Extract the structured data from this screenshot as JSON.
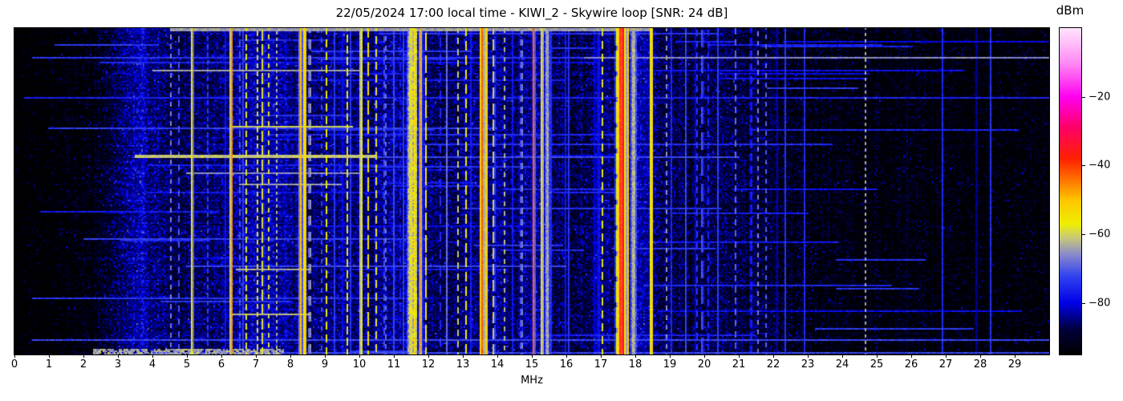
{
  "title": "22/05/2024 17:00 local time - KIWI_2 - Skywire loop [SNR: 24 dB]",
  "xaxis": {
    "label": "MHz",
    "min": 0,
    "max": 30,
    "ticks": [
      0,
      1,
      2,
      3,
      4,
      5,
      6,
      7,
      8,
      9,
      10,
      11,
      12,
      13,
      14,
      15,
      16,
      17,
      18,
      19,
      20,
      21,
      22,
      23,
      24,
      25,
      26,
      27,
      28,
      29
    ],
    "tick_labels": [
      "0",
      "1",
      "2",
      "3",
      "4",
      "5",
      "6",
      "7",
      "8",
      "9",
      "10",
      "11",
      "12",
      "13",
      "14",
      "15",
      "16",
      "17",
      "18",
      "19",
      "20",
      "21",
      "22",
      "23",
      "24",
      "25",
      "26",
      "27",
      "28",
      "29"
    ]
  },
  "colorbar": {
    "label": "dBm",
    "min": -95,
    "max": 0,
    "tick_values": [
      -20,
      -40,
      -60,
      -80
    ],
    "tick_labels": [
      "−20",
      "−40",
      "−60",
      "−80"
    ],
    "stops": [
      {
        "db": -95,
        "c": "#000000"
      },
      {
        "db": -88,
        "c": "#000038"
      },
      {
        "db": -80,
        "c": "#0000e8"
      },
      {
        "db": -72,
        "c": "#3344ee"
      },
      {
        "db": -66,
        "c": "#8888cc"
      },
      {
        "db": -61,
        "c": "#c8c87a"
      },
      {
        "db": -57,
        "c": "#eeee00"
      },
      {
        "db": -50,
        "c": "#ffc400"
      },
      {
        "db": -44,
        "c": "#ff7000"
      },
      {
        "db": -38,
        "c": "#ff2000"
      },
      {
        "db": -29,
        "c": "#ff0066"
      },
      {
        "db": -20,
        "c": "#ff00ee"
      },
      {
        "db": -10,
        "c": "#ff8cf4"
      },
      {
        "db": 0,
        "c": "#ffe4fc"
      }
    ]
  },
  "chart_data": {
    "type": "heatmap",
    "title": "22/05/2024 17:00 local time - KIWI_2 - Skywire loop [SNR: 24 dB]",
    "xlabel": "MHz",
    "x_range": [
      0,
      30
    ],
    "value_label": "dBm",
    "value_range": [
      -95,
      0
    ],
    "noise_floor_envelope": [
      [
        0,
        -96
      ],
      [
        1,
        -95
      ],
      [
        2,
        -92
      ],
      [
        2.8,
        -88
      ],
      [
        3.3,
        -83
      ],
      [
        3.65,
        -79
      ],
      [
        4.1,
        -83
      ],
      [
        4.6,
        -86
      ],
      [
        5.2,
        -85
      ],
      [
        6,
        -84
      ],
      [
        6.5,
        -82
      ],
      [
        7.5,
        -81
      ],
      [
        8.6,
        -84
      ],
      [
        9.3,
        -83
      ],
      [
        10,
        -83
      ],
      [
        10.8,
        -82
      ],
      [
        11.6,
        -82
      ],
      [
        12.3,
        -86
      ],
      [
        12.9,
        -84
      ],
      [
        13.6,
        -83
      ],
      [
        14.4,
        -84
      ],
      [
        15.1,
        -82
      ],
      [
        15.7,
        -85
      ],
      [
        16.3,
        -87
      ],
      [
        16.9,
        -84
      ],
      [
        17.4,
        -82
      ],
      [
        18.1,
        -81
      ],
      [
        18.7,
        -85
      ],
      [
        19.5,
        -87
      ],
      [
        20.3,
        -86
      ],
      [
        21.2,
        -86
      ],
      [
        22,
        -88
      ],
      [
        22.8,
        -90
      ],
      [
        23.5,
        -91
      ],
      [
        24.5,
        -92
      ],
      [
        26,
        -92
      ],
      [
        27.5,
        -93
      ],
      [
        29,
        -93
      ],
      [
        30,
        -93
      ]
    ],
    "carriers": [
      {
        "f": 4.53,
        "w": 0.02,
        "lvl": -66,
        "dash": 6,
        "duty": 0.5
      },
      {
        "f": 4.76,
        "w": 0.02,
        "lvl": -68,
        "dash": 8,
        "duty": 0.4
      },
      {
        "f": 5.15,
        "w": 0.04,
        "lvl": -55
      },
      {
        "f": 5.6,
        "w": 0.02,
        "lvl": -72,
        "dash": 5,
        "duty": 0.5
      },
      {
        "f": 6.29,
        "w": 0.035,
        "lvl": -44
      },
      {
        "f": 6.55,
        "w": 0.02,
        "lvl": -60,
        "dash": 7,
        "duty": 0.45
      },
      {
        "f": 6.73,
        "w": 0.03,
        "lvl": -57,
        "dash": 6,
        "duty": 0.55
      },
      {
        "f": 7.05,
        "w": 0.03,
        "lvl": -58,
        "dash": 5,
        "duty": 0.5
      },
      {
        "f": 7.2,
        "w": 0.03,
        "lvl": -55,
        "dash": 9,
        "duty": 0.7
      },
      {
        "f": 7.38,
        "w": 0.025,
        "lvl": -57,
        "dash": 6,
        "duty": 0.5
      },
      {
        "f": 7.6,
        "w": 0.02,
        "lvl": -62,
        "dash": 4,
        "duty": 0.5
      },
      {
        "f": 7.82,
        "w": 0.02,
        "lvl": -70
      },
      {
        "f": 8.3,
        "w": 0.045,
        "lvl": -50
      },
      {
        "f": 8.42,
        "w": 0.04,
        "lvl": -47
      },
      {
        "f": 8.56,
        "w": 0.03,
        "lvl": -56,
        "dash": 10,
        "duty": 0.6
      },
      {
        "f": 8.92,
        "w": 0.02,
        "lvl": -64,
        "dash": 6,
        "duty": 0.5
      },
      {
        "f": 9.05,
        "w": 0.03,
        "lvl": -57,
        "dash": 8,
        "duty": 0.6
      },
      {
        "f": 9.3,
        "w": 0.02,
        "lvl": -66,
        "dash": 5,
        "duty": 0.5
      },
      {
        "f": 9.65,
        "w": 0.03,
        "lvl": -58,
        "dash": 7,
        "duty": 0.6
      },
      {
        "f": 10.05,
        "w": 0.035,
        "lvl": -52
      },
      {
        "f": 10.25,
        "w": 0.03,
        "lvl": -54,
        "dash": 12,
        "duty": 0.7
      },
      {
        "f": 10.5,
        "w": 0.03,
        "lvl": -56,
        "dash": 8,
        "duty": 0.6
      },
      {
        "f": 10.75,
        "w": 0.025,
        "lvl": -60,
        "dash": 6,
        "duty": 0.5
      },
      {
        "f": 11.5,
        "w": 0.12,
        "lvl": -57,
        "jit": 5
      },
      {
        "f": 11.62,
        "w": 0.05,
        "lvl": -53,
        "jit": 4
      },
      {
        "f": 11.78,
        "w": 0.035,
        "lvl": -47
      },
      {
        "f": 11.92,
        "w": 0.03,
        "lvl": -55,
        "dash": 14,
        "duty": 0.75
      },
      {
        "f": 12.55,
        "w": 0.02,
        "lvl": -58
      },
      {
        "f": 12.85,
        "w": 0.025,
        "lvl": -58,
        "dash": 7,
        "duty": 0.55
      },
      {
        "f": 13.1,
        "w": 0.025,
        "lvl": -55,
        "dash": 9,
        "duty": 0.6
      },
      {
        "f": 13.55,
        "w": 0.05,
        "lvl": -42
      },
      {
        "f": 13.68,
        "w": 0.035,
        "lvl": -49
      },
      {
        "f": 13.9,
        "w": 0.03,
        "lvl": -55,
        "dash": 10,
        "duty": 0.65
      },
      {
        "f": 14.2,
        "w": 0.025,
        "lvl": -60,
        "dash": 6,
        "duty": 0.5
      },
      {
        "f": 14.7,
        "w": 0.03,
        "lvl": -58,
        "dash": 7,
        "duty": 0.55
      },
      {
        "f": 15.05,
        "w": 0.035,
        "lvl": -43
      },
      {
        "f": 15.3,
        "w": 0.03,
        "lvl": -50
      },
      {
        "f": 15.45,
        "w": 0.08,
        "lvl": -63,
        "jit": 3
      },
      {
        "f": 16.8,
        "w": 0.02,
        "lvl": -72
      },
      {
        "f": 17.05,
        "w": 0.025,
        "lvl": -58,
        "dash": 8,
        "duty": 0.55
      },
      {
        "f": 17.45,
        "w": 0.03,
        "lvl": -53,
        "dash": 16,
        "duty": 0.8
      },
      {
        "f": 17.52,
        "w": 0.06,
        "lvl": -52,
        "jit": 3
      },
      {
        "f": 17.58,
        "w": 0.03,
        "lvl": -30
      },
      {
        "f": 17.66,
        "w": 0.03,
        "lvl": -28
      },
      {
        "f": 17.78,
        "w": 0.04,
        "lvl": -50
      },
      {
        "f": 17.95,
        "w": 0.1,
        "lvl": -62,
        "jit": 3
      },
      {
        "f": 18.47,
        "w": 0.04,
        "lvl": -49
      },
      {
        "f": 18.9,
        "w": 0.025,
        "lvl": -64,
        "dash": 6,
        "duty": 0.5
      },
      {
        "f": 19.3,
        "w": 0.02,
        "lvl": -64,
        "dash": 5,
        "duty": 0.45
      },
      {
        "f": 19.95,
        "w": 0.03,
        "lvl": -63,
        "dash": 16,
        "duty": 0.65
      },
      {
        "f": 20.4,
        "w": 0.02,
        "lvl": -72
      },
      {
        "f": 20.9,
        "w": 0.02,
        "lvl": -67,
        "dash": 7,
        "duty": 0.5
      },
      {
        "f": 21.35,
        "w": 0.025,
        "lvl": -62,
        "dash": 8,
        "duty": 0.55
      },
      {
        "f": 21.55,
        "w": 0.02,
        "lvl": -64,
        "dash": 6,
        "duty": 0.5
      },
      {
        "f": 21.8,
        "w": 0.02,
        "lvl": -66,
        "dash": 6,
        "duty": 0.5
      },
      {
        "f": 22.35,
        "w": 0.02,
        "lvl": -74
      },
      {
        "f": 22.9,
        "w": 0.02,
        "lvl": -73
      },
      {
        "f": 24.68,
        "w": 0.02,
        "lvl": -62,
        "dash": 4,
        "duty": 0.5
      },
      {
        "f": 25.9,
        "w": 0.02,
        "lvl": -77
      },
      {
        "f": 26.9,
        "w": 0.02,
        "lvl": -73
      },
      {
        "f": 27.9,
        "w": 0.02,
        "lvl": -72
      },
      {
        "f": 28.3,
        "w": 0.02,
        "lvl": -74
      }
    ],
    "streaks": [
      {
        "y": 0.0,
        "f0": 4.5,
        "f1": 18.5,
        "lvl": -64,
        "th": 2
      },
      {
        "y": 0.09,
        "f0": 16.5,
        "f1": 30,
        "lvl": -66,
        "th": 1
      },
      {
        "y": 0.09,
        "f0": 0.5,
        "f1": 16.5,
        "lvl": -74,
        "th": 1
      },
      {
        "y": 0.13,
        "f0": 4,
        "f1": 10,
        "lvl": -64,
        "th": 1
      },
      {
        "y": 0.21,
        "f0": 0.3,
        "f1": 30,
        "lvl": -76,
        "th": 1
      },
      {
        "y": 0.3,
        "f0": 6.3,
        "f1": 9.8,
        "lvl": -60,
        "th": 1
      },
      {
        "y": 0.305,
        "f0": 1,
        "f1": 14,
        "lvl": -73,
        "th": 1
      },
      {
        "y": 0.39,
        "f0": 3.5,
        "f1": 10.5,
        "lvl": -61,
        "th": 2
      },
      {
        "y": 0.395,
        "f0": 10.5,
        "f1": 21,
        "lvl": -72,
        "th": 1
      },
      {
        "y": 0.445,
        "f0": 5,
        "f1": 10,
        "lvl": -66,
        "th": 1
      },
      {
        "y": 0.48,
        "f0": 6.5,
        "f1": 9.5,
        "lvl": -64,
        "th": 1
      },
      {
        "y": 0.55,
        "f0": 13,
        "f1": 20.5,
        "lvl": -74,
        "th": 1
      },
      {
        "y": 0.645,
        "f0": 2,
        "f1": 12,
        "lvl": -73,
        "th": 1
      },
      {
        "y": 0.73,
        "f0": 5,
        "f1": 16,
        "lvl": -72,
        "th": 1
      },
      {
        "y": 0.74,
        "f0": 6.4,
        "f1": 8.6,
        "lvl": -63,
        "th": 1
      },
      {
        "y": 0.83,
        "f0": 0.5,
        "f1": 12,
        "lvl": -74,
        "th": 1
      },
      {
        "y": 0.875,
        "f0": 6.3,
        "f1": 8.6,
        "lvl": -62,
        "th": 1
      },
      {
        "y": 0.955,
        "f0": 0.5,
        "f1": 30,
        "lvl": -72,
        "th": 1
      },
      {
        "y": 0.995,
        "f0": 4,
        "f1": 30,
        "lvl": -72,
        "th": 1
      }
    ],
    "bottom_band": {
      "rows": 4,
      "f0": 2.3,
      "f1": 7.8,
      "lvl": -64
    },
    "render": {
      "seed": 1337,
      "random_streaks": 55,
      "random_verticals": 45
    }
  }
}
